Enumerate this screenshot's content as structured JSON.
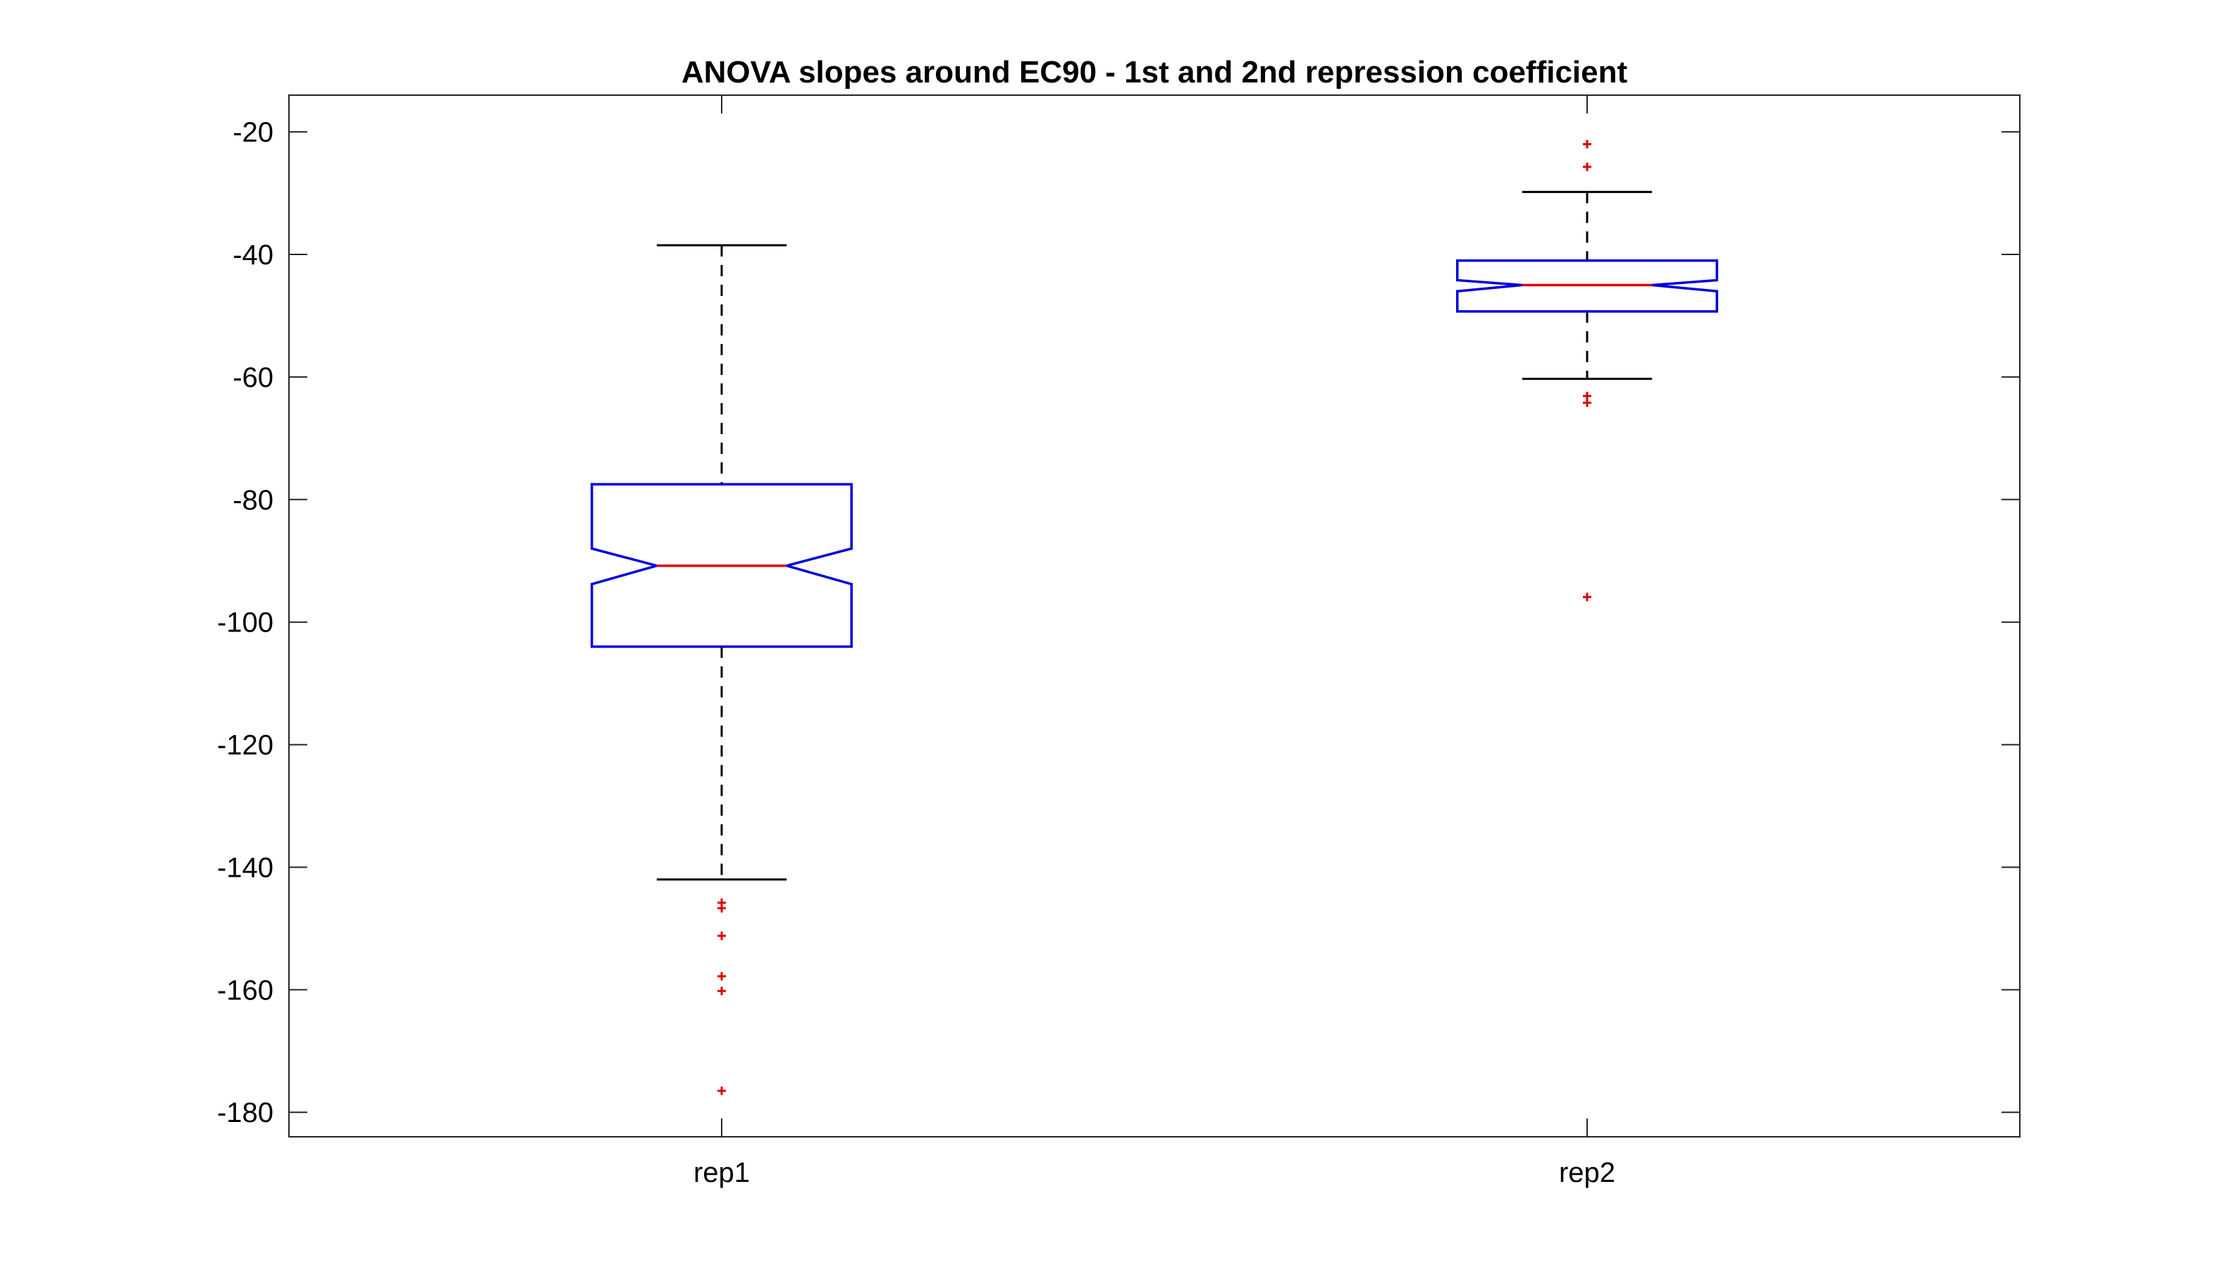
{
  "chart_data": {
    "type": "box",
    "title": "ANOVA slopes around EC90 - 1st and 2nd repression coefficient",
    "xlabel": "",
    "ylabel": "",
    "categories": [
      "rep1",
      "rep2"
    ],
    "ylim": [
      -184,
      -14
    ],
    "yticks": [
      -20,
      -40,
      -60,
      -80,
      -100,
      -120,
      -140,
      -160,
      -180
    ],
    "grid": false,
    "notched": true,
    "boxes": [
      {
        "name": "rep1",
        "whisker_high": -38.5,
        "q3": -77.5,
        "notch_high": -88,
        "median": -90.8,
        "notch_low": -93.8,
        "q1": -104,
        "whisker_low": -142,
        "outliers": [
          -145.8,
          -146.7,
          -151.2,
          -157.8,
          -160.2,
          -176.5
        ]
      },
      {
        "name": "rep2",
        "whisker_high": -29.8,
        "q3": -41,
        "notch_high": -44.2,
        "median": -45,
        "notch_low": -46,
        "q1": -49.3,
        "whisker_low": -60.3,
        "outliers": [
          -22,
          -25.7,
          -63.1,
          -64.2,
          -95.9
        ]
      }
    ],
    "colors": {
      "box": "#0000dd",
      "median": "#dd0000",
      "whisker": "#000000",
      "outlier": "#dd0000",
      "axes": "#262626"
    }
  }
}
